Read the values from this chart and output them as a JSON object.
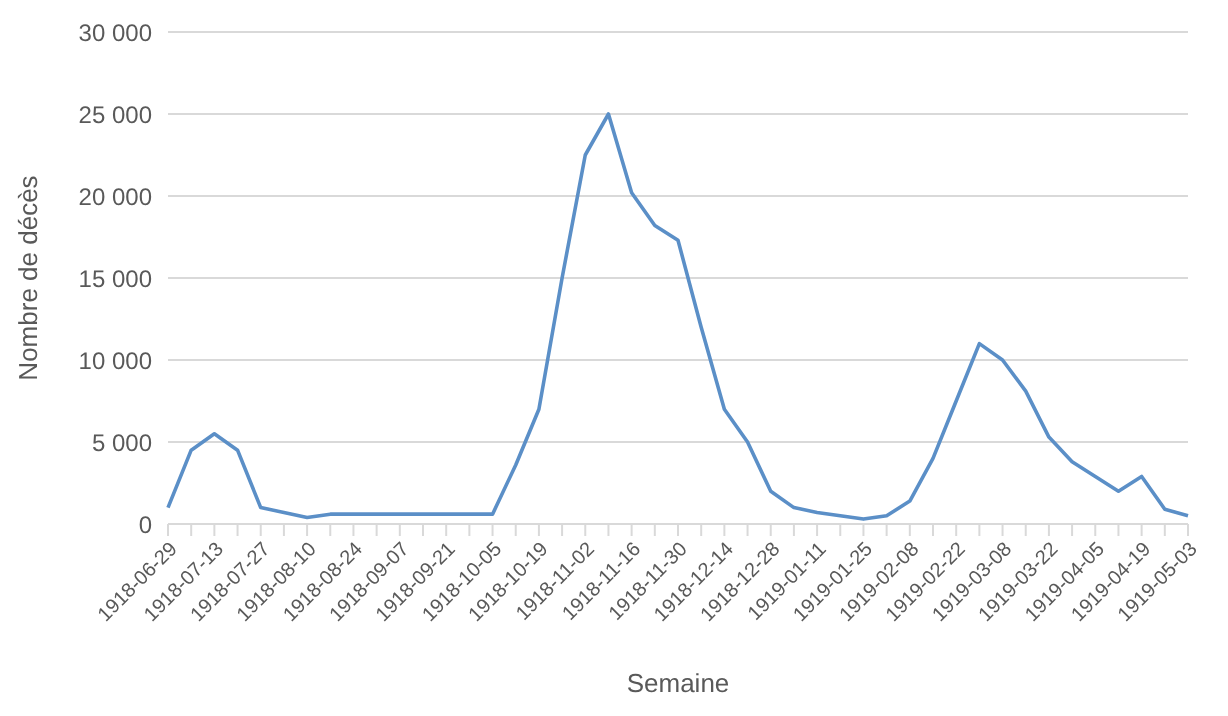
{
  "chart_data": {
    "type": "line",
    "xlabel": "Semaine",
    "ylabel": "Nombre de décès",
    "categories": [
      "1918-06-29",
      null,
      "1918-07-13",
      null,
      "1918-07-27",
      null,
      "1918-08-10",
      null,
      "1918-08-24",
      null,
      "1918-09-07",
      null,
      "1918-09-21",
      null,
      "1918-10-05",
      null,
      "1918-10-19",
      null,
      "1918-11-02",
      null,
      "1918-11-16",
      null,
      "1918-11-30",
      null,
      "1918-12-14",
      null,
      "1918-12-28",
      null,
      "1919-01-11",
      null,
      "1919-01-25",
      null,
      "1919-02-08",
      null,
      "1919-02-22",
      null,
      "1919-03-08",
      null,
      "1919-03-22",
      null,
      "1919-04-05",
      null,
      "1919-04-19",
      null,
      "1919-05-03"
    ],
    "series": [
      {
        "color": "#5b8fc7",
        "values": [
          1000,
          4500,
          5500,
          4500,
          1000,
          700,
          400,
          600,
          600,
          600,
          600,
          600,
          600,
          600,
          600,
          3600,
          7000,
          15000,
          22500,
          25000,
          20200,
          18200,
          17300,
          12000,
          7000,
          5000,
          2000,
          1000,
          700,
          500,
          300,
          500,
          1400,
          4000,
          7500,
          11000,
          10000,
          8100,
          5300,
          3800,
          2900,
          2000,
          2900,
          900,
          500
        ]
      }
    ],
    "ylim": [
      0,
      30000
    ],
    "yticks": [
      0,
      {
        "value": 5000,
        "label": "5 000"
      },
      {
        "value": 10000,
        "label": "10 000"
      },
      {
        "value": 15000,
        "label": "15 000"
      },
      {
        "value": 20000,
        "label": "20 000"
      },
      {
        "value": 25000,
        "label": "25 000"
      },
      {
        "value": 30000,
        "label": "30 000"
      }
    ],
    "grid": "y",
    "legend": false,
    "marker": "none",
    "line_style": "solid"
  }
}
